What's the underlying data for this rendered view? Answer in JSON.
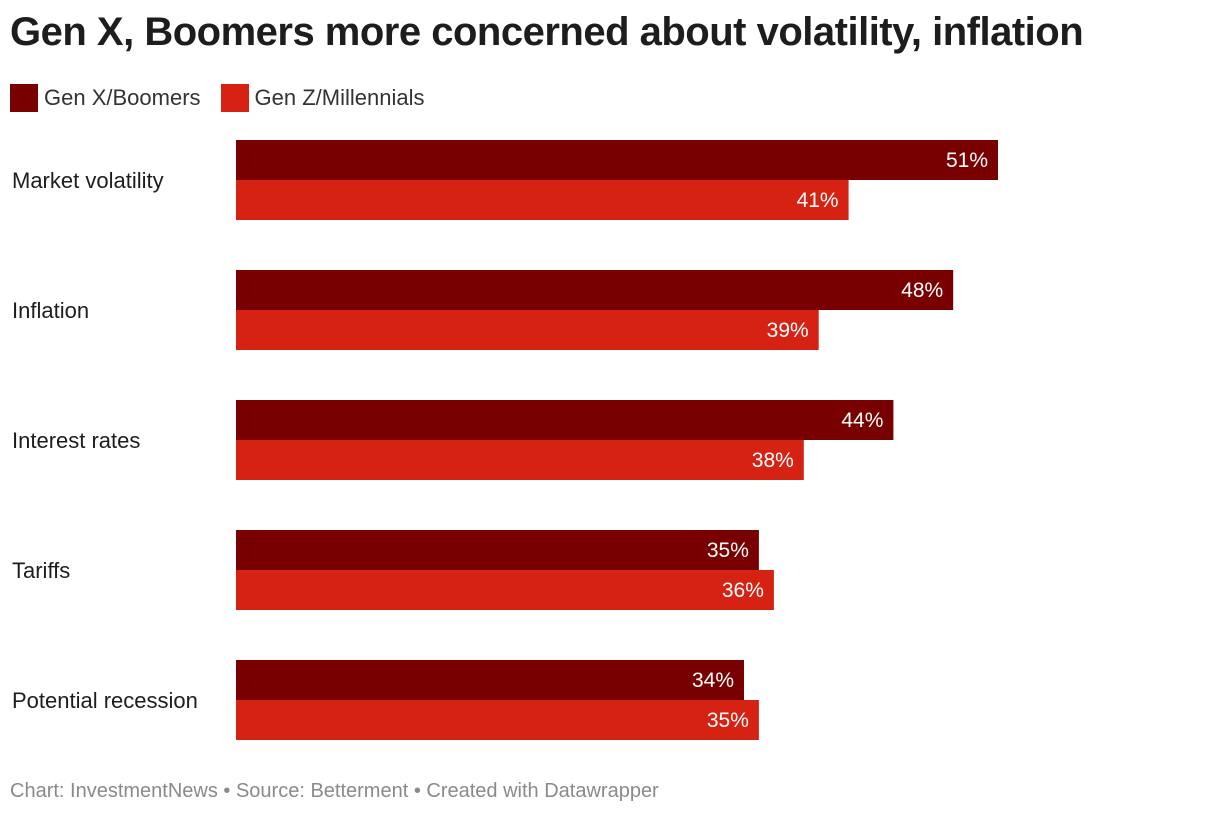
{
  "title": "Gen X, Boomers more concerned about volatility, inflation",
  "colors": {
    "gen_x_boomers": "#780000",
    "gen_z_millennials": "#d52213"
  },
  "legend": [
    {
      "label": "Gen X/Boomers"
    },
    {
      "label": "Gen Z/Millennials"
    }
  ],
  "chart_data": {
    "type": "bar",
    "orientation": "horizontal",
    "categories": [
      "Market volatility",
      "Inflation",
      "Interest rates",
      "Tariffs",
      "Potential recession"
    ],
    "series": [
      {
        "name": "Gen X/Boomers",
        "values": [
          51,
          48,
          44,
          35,
          34
        ],
        "labels": [
          "51%",
          "48%",
          "44%",
          "35%",
          "34%"
        ]
      },
      {
        "name": "Gen Z/Millennials",
        "values": [
          41,
          39,
          38,
          36,
          35
        ],
        "labels": [
          "41%",
          "39%",
          "38%",
          "36%",
          "35%"
        ]
      }
    ],
    "title": "Gen X, Boomers more concerned about volatility, inflation",
    "xlabel": "",
    "ylabel": "",
    "xlim": [
      0,
      51
    ],
    "grid": false,
    "legend_position": "top-left"
  },
  "footer": {
    "text": "Chart: InvestmentNews • Source: Betterment • Created with Datawrapper"
  }
}
